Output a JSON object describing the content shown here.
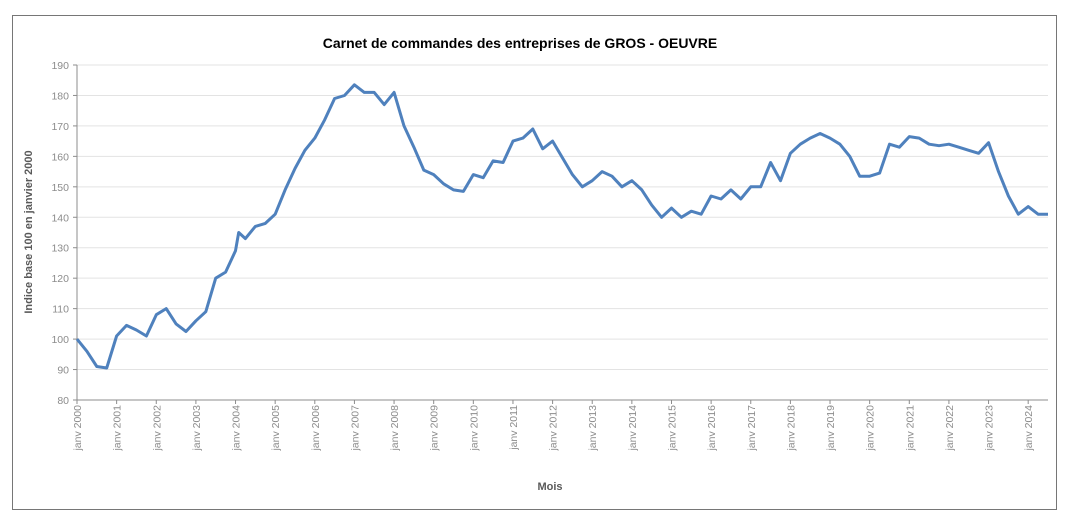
{
  "chart_data": {
    "type": "line",
    "title": "Carnet de commandes des entreprises de GROS - OEUVRE",
    "xlabel": "Mois",
    "ylabel": "Indice base 100 en janvier 2000",
    "ylim": [
      80,
      190
    ],
    "yticks": [
      80,
      90,
      100,
      110,
      120,
      130,
      140,
      150,
      160,
      170,
      180,
      190
    ],
    "xlim": [
      2000,
      2024.5
    ],
    "xticks": [
      "janv 2000",
      "janv 2001",
      "janv 2002",
      "janv 2003",
      "janv 2004",
      "janv 2005",
      "janv 2006",
      "janv 2007",
      "janv 2008",
      "janv 2009",
      "janv 2010",
      "janv 2011",
      "janv 2012",
      "janv 2013",
      "janv 2014",
      "janv 2015",
      "janv 2016",
      "janv 2017",
      "janv 2018",
      "janv 2019",
      "janv 2020",
      "janv 2021",
      "janv 2022",
      "janv 2023",
      "janv 2024"
    ],
    "grid": true,
    "legend": "none",
    "color": "#4f81bd",
    "series": [
      {
        "name": "Indice",
        "x": [
          2000,
          2000.25,
          2000.5,
          2000.75,
          2001,
          2001.25,
          2001.5,
          2001.75,
          2002,
          2002.25,
          2002.5,
          2002.75,
          2003,
          2003.25,
          2003.5,
          2003.75,
          2004,
          2004.08,
          2004.25,
          2004.5,
          2004.75,
          2005,
          2005.25,
          2005.5,
          2005.75,
          2006,
          2006.25,
          2006.5,
          2006.75,
          2007,
          2007.25,
          2007.5,
          2007.75,
          2008,
          2008.25,
          2008.5,
          2008.75,
          2009,
          2009.25,
          2009.5,
          2009.75,
          2010,
          2010.25,
          2010.5,
          2010.75,
          2011,
          2011.25,
          2011.5,
          2011.75,
          2012,
          2012.25,
          2012.5,
          2012.75,
          2013,
          2013.25,
          2013.5,
          2013.75,
          2014,
          2014.25,
          2014.5,
          2014.75,
          2015,
          2015.25,
          2015.5,
          2015.75,
          2016,
          2016.25,
          2016.5,
          2016.75,
          2017,
          2017.25,
          2017.5,
          2017.75,
          2018,
          2018.25,
          2018.5,
          2018.75,
          2019,
          2019.25,
          2019.5,
          2019.75,
          2020,
          2020.25,
          2020.5,
          2020.75,
          2021,
          2021.25,
          2021.5,
          2021.75,
          2022,
          2022.25,
          2022.5,
          2022.75,
          2023,
          2023.25,
          2023.5,
          2023.75,
          2024,
          2024.25,
          2024.5
        ],
        "values": [
          100,
          96,
          91,
          90.5,
          101,
          104.5,
          103,
          101,
          108,
          110,
          105,
          102.5,
          106,
          109,
          120,
          122,
          129,
          135,
          133,
          137,
          138,
          141,
          149,
          156,
          162,
          166,
          172,
          179,
          180,
          183.5,
          181,
          181,
          177,
          181,
          170,
          163,
          155.5,
          154,
          151,
          149,
          148.5,
          154,
          153,
          158.5,
          158,
          165,
          166,
          169,
          162.5,
          165,
          159.5,
          154,
          150,
          152,
          155,
          153.5,
          150,
          152,
          149,
          144,
          140,
          143,
          140,
          142,
          141,
          147,
          146,
          149,
          146,
          150,
          150,
          158,
          152,
          161,
          164,
          166,
          167.5,
          166,
          164,
          160,
          153.5,
          153.5,
          154.5,
          164,
          163,
          166.5,
          166,
          164,
          163.5,
          164,
          163,
          162,
          161,
          164.5,
          155,
          147,
          141,
          143.5,
          141,
          141
        ]
      }
    ]
  }
}
